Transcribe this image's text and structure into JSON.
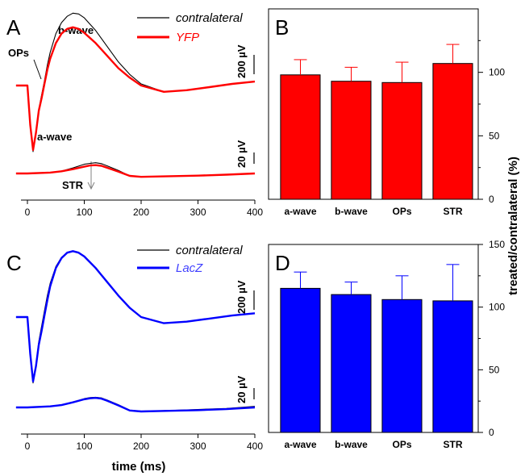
{
  "colors": {
    "black": "#000000",
    "red": "#ff0000",
    "blue": "#0000ff",
    "redDark": "#e00000"
  },
  "panels": {
    "A": {
      "letter": "A",
      "legend_black": "contralateral",
      "legend_color": "YFP",
      "labels": {
        "bwave": "b-wave",
        "ops": "OPs",
        "awave": "a-wave",
        "str": "STR"
      },
      "scale_top": "200 µV",
      "scale_bottom": "20 µV"
    },
    "B": {
      "letter": "B"
    },
    "C": {
      "letter": "C",
      "legend_black": "contralateral",
      "legend_color": "LacZ",
      "scale_top": "200 µV",
      "scale_bottom": "20 µV"
    },
    "D": {
      "letter": "D"
    }
  },
  "xaxis": {
    "title": "time (ms)",
    "ticks": [
      "0",
      "100",
      "200",
      "300",
      "400"
    ]
  },
  "shared_ylabel": "treated/contralateral (%)",
  "chart_data": [
    {
      "panel": "A",
      "type": "line",
      "xlabel": "",
      "ylabel": "",
      "xlim": [
        -20,
        400
      ],
      "series": [
        {
          "name": "contralateral",
          "color": "#000000",
          "x": [
            -20,
            0,
            5,
            10,
            15,
            20,
            25,
            30,
            35,
            40,
            50,
            60,
            70,
            80,
            90,
            100,
            120,
            140,
            160,
            180,
            200,
            240,
            280,
            320,
            360,
            400
          ],
          "y": [
            0,
            0,
            -250,
            -420,
            -300,
            -150,
            -60,
            30,
            130,
            210,
            330,
            400,
            440,
            460,
            455,
            430,
            350,
            250,
            150,
            70,
            10,
            -40,
            -30,
            -10,
            10,
            25
          ]
        },
        {
          "name": "YFP",
          "color": "#ff0000",
          "x": [
            -20,
            0,
            5,
            10,
            15,
            20,
            25,
            30,
            35,
            40,
            50,
            60,
            70,
            80,
            90,
            100,
            120,
            140,
            160,
            180,
            200,
            240,
            280,
            320,
            360,
            400
          ],
          "y": [
            0,
            0,
            -250,
            -410,
            -300,
            -160,
            -80,
            10,
            100,
            170,
            270,
            330,
            360,
            370,
            360,
            335,
            270,
            190,
            110,
            50,
            0,
            -40,
            -30,
            -10,
            10,
            25
          ]
        },
        {
          "name": "contralateral STR",
          "color": "#000000",
          "x": [
            -20,
            0,
            40,
            60,
            80,
            100,
            110,
            120,
            130,
            140,
            160,
            180,
            200,
            250,
            300,
            350,
            400
          ],
          "y": [
            0,
            0,
            3,
            8,
            18,
            30,
            33,
            35,
            32,
            25,
            10,
            -8,
            -10,
            -9,
            -7,
            -4,
            0
          ]
        },
        {
          "name": "YFP STR",
          "color": "#ff0000",
          "x": [
            -20,
            0,
            40,
            60,
            80,
            100,
            110,
            120,
            130,
            140,
            160,
            180,
            200,
            250,
            300,
            350,
            400
          ],
          "y": [
            0,
            0,
            3,
            7,
            14,
            22,
            26,
            27,
            25,
            19,
            6,
            -8,
            -11,
            -9,
            -7,
            -4,
            0
          ]
        }
      ]
    },
    {
      "panel": "B",
      "type": "bar",
      "categories": [
        "a-wave",
        "b-wave",
        "OPs",
        "STR"
      ],
      "values": [
        98,
        93,
        92,
        107
      ],
      "errors": [
        12,
        11,
        16,
        15
      ],
      "ylim": [
        0,
        150
      ],
      "yticks": [
        "0",
        "50",
        "100"
      ],
      "color": "#ff0000"
    },
    {
      "panel": "C",
      "type": "line",
      "xlabel": "time (ms)",
      "ylabel": "",
      "xlim": [
        -20,
        400
      ],
      "series": [
        {
          "name": "contralateral",
          "color": "#000000",
          "x": [
            -20,
            0,
            5,
            10,
            15,
            20,
            25,
            30,
            35,
            40,
            50,
            60,
            70,
            80,
            90,
            100,
            120,
            140,
            160,
            180,
            200,
            240,
            280,
            320,
            360,
            400
          ],
          "y": [
            0,
            0,
            -250,
            -430,
            -310,
            -160,
            -60,
            40,
            140,
            220,
            330,
            390,
            420,
            430,
            420,
            395,
            320,
            230,
            140,
            60,
            0,
            -40,
            -30,
            -10,
            10,
            25
          ]
        },
        {
          "name": "LacZ",
          "color": "#0000ff",
          "x": [
            -20,
            0,
            5,
            10,
            15,
            20,
            25,
            30,
            35,
            40,
            50,
            60,
            70,
            80,
            90,
            100,
            120,
            140,
            160,
            180,
            200,
            240,
            280,
            320,
            360,
            400
          ],
          "y": [
            0,
            0,
            -240,
            -420,
            -320,
            -180,
            -90,
            10,
            110,
            200,
            320,
            385,
            420,
            430,
            420,
            395,
            320,
            230,
            140,
            60,
            0,
            -40,
            -30,
            -10,
            10,
            25
          ]
        },
        {
          "name": "contralateral STR",
          "color": "#000000",
          "x": [
            -20,
            0,
            40,
            60,
            80,
            100,
            110,
            120,
            130,
            140,
            160,
            180,
            200,
            250,
            300,
            350,
            400
          ],
          "y": [
            0,
            0,
            3,
            8,
            16,
            26,
            29,
            30,
            28,
            22,
            8,
            -8,
            -11,
            -9,
            -6,
            -3,
            3
          ]
        },
        {
          "name": "LacZ STR",
          "color": "#0000ff",
          "x": [
            -20,
            0,
            40,
            60,
            80,
            100,
            110,
            120,
            130,
            140,
            160,
            180,
            200,
            250,
            300,
            350,
            400
          ],
          "y": [
            0,
            0,
            3,
            7,
            15,
            24,
            27,
            28,
            26,
            20,
            6,
            -9,
            -12,
            -10,
            -8,
            -5,
            0
          ]
        }
      ]
    },
    {
      "panel": "D",
      "type": "bar",
      "categories": [
        "a-wave",
        "b-wave",
        "OPs",
        "STR"
      ],
      "values": [
        115,
        110,
        106,
        105
      ],
      "errors": [
        13,
        10,
        19,
        29
      ],
      "ylim": [
        0,
        150
      ],
      "yticks": [
        "0",
        "50",
        "100",
        "150"
      ],
      "color": "#0000ff"
    }
  ]
}
